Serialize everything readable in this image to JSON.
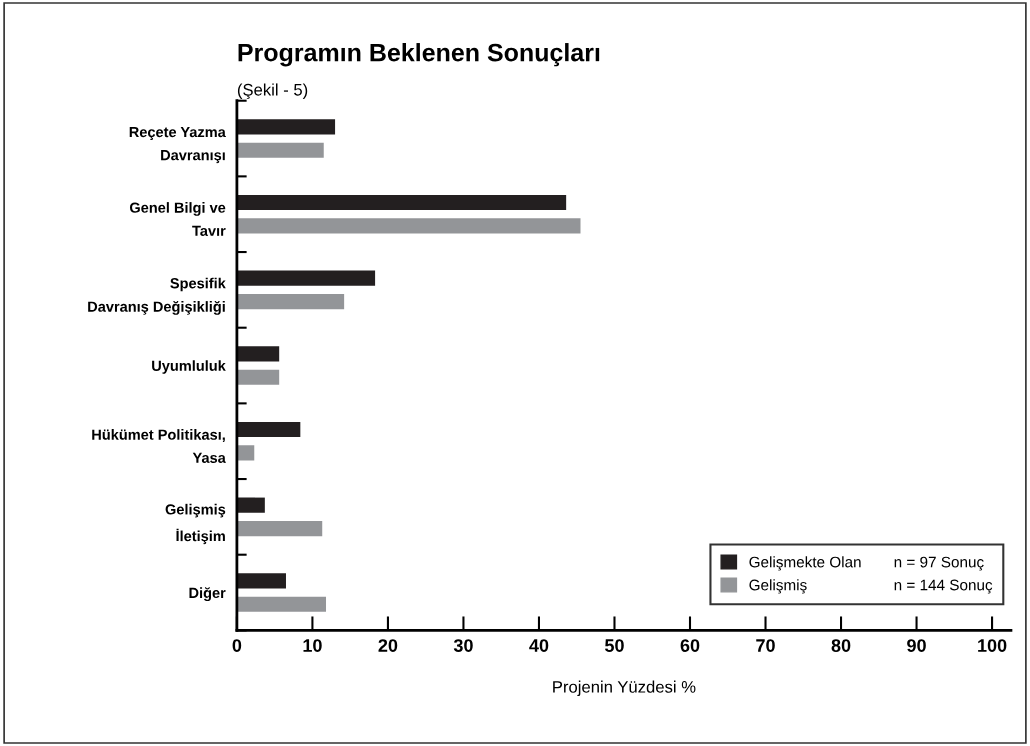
{
  "chart_data": {
    "type": "bar",
    "orientation": "horizontal",
    "title": "Programın Beklenen Sonuçları",
    "subtitle": "(Şekil - 5)",
    "xlabel": "Projenin Yüzdesi %",
    "categories": [
      "Reçete Yazma\nDavranışı",
      "Genel Bilgi ve\nTavır",
      "Spesifik\nDavranış Değişikliği",
      "Uyumluluk",
      "Hükümet Politikası,\nYasa",
      "Gelişmiş\nİletişim",
      "Diğer"
    ],
    "series": [
      {
        "name": "Gelişmekte Olan",
        "color": "#231f20",
        "values": [
          13.0,
          43.6,
          18.3,
          5.6,
          8.4,
          3.7,
          6.5
        ]
      },
      {
        "name": "Gelişmiş",
        "color": "#939598",
        "values": [
          11.5,
          45.5,
          14.2,
          5.6,
          2.3,
          11.3,
          11.8
        ]
      }
    ],
    "annotations": [
      "n = 97 Sonuç",
      "n = 144 Sonuç"
    ],
    "xlim": [
      0,
      102.5
    ],
    "xticks": [
      0,
      10,
      20,
      30,
      40,
      50,
      60,
      70,
      80,
      90,
      100
    ],
    "grid": false,
    "legend": "bottom right"
  }
}
